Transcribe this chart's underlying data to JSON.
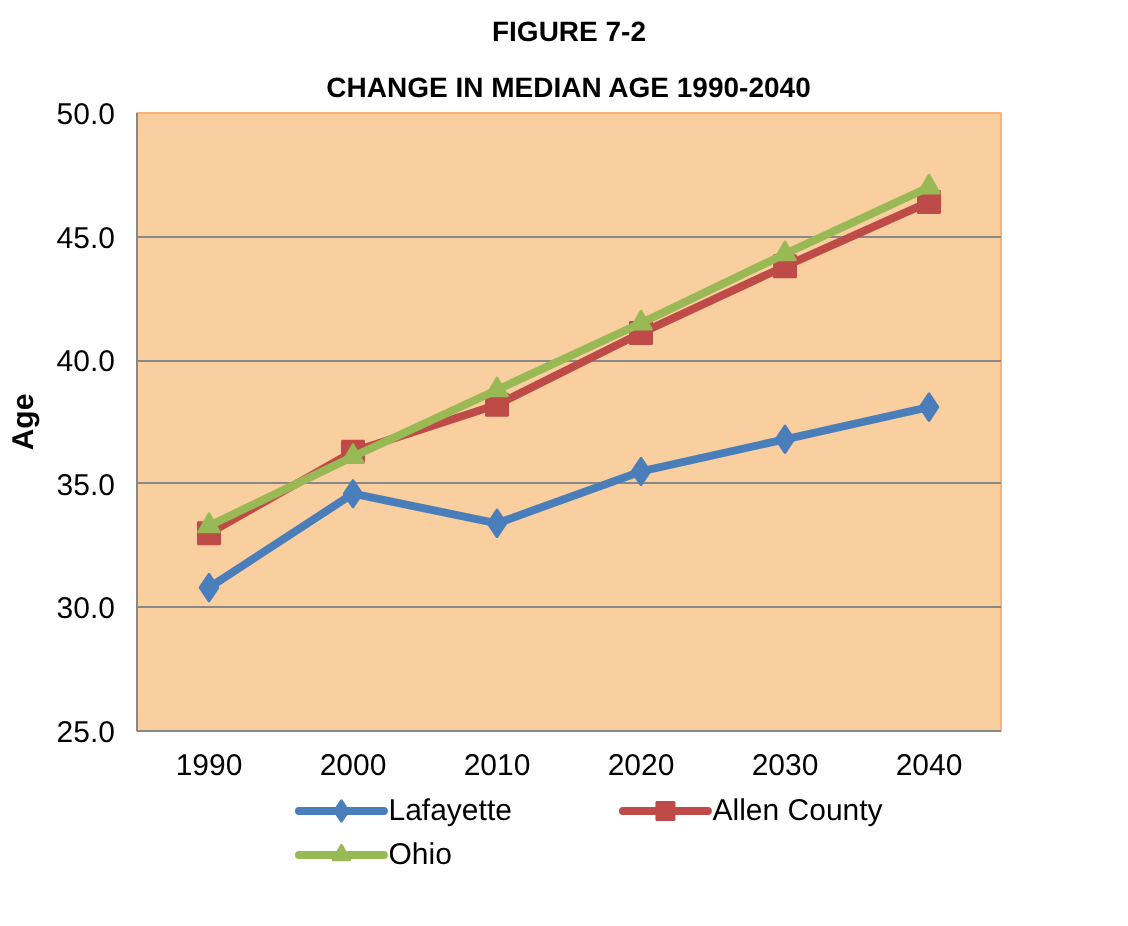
{
  "chart_data": {
    "type": "line",
    "title": "FIGURE 7-2",
    "subtitle": "CHANGE IN MEDIAN AGE 1990-2040",
    "ylabel": "Age",
    "categories": [
      "1990",
      "2000",
      "2010",
      "2020",
      "2030",
      "2040"
    ],
    "ylim": [
      25,
      50
    ],
    "yticks": [
      {
        "value": 25,
        "label": "25.0"
      },
      {
        "value": 30,
        "label": "30.0"
      },
      {
        "value": 35,
        "label": "35.0"
      },
      {
        "value": 40,
        "label": "40.0"
      },
      {
        "value": 45,
        "label": "45.0"
      },
      {
        "value": 50,
        "label": "50.0"
      }
    ],
    "grid": "y",
    "legend": "bottom",
    "series": [
      {
        "name": "Lafayette",
        "color": "#4a7ebb",
        "marker": "diamond",
        "values": [
          30.8,
          34.6,
          33.4,
          35.5,
          36.8,
          38.1
        ]
      },
      {
        "name": "Allen County",
        "color": "#be4b48",
        "marker": "square",
        "values": [
          33.0,
          36.3,
          38.2,
          41.1,
          43.8,
          46.4
        ]
      },
      {
        "name": "Ohio",
        "color": "#98b954",
        "marker": "triangle",
        "values": [
          33.3,
          36.1,
          38.8,
          41.5,
          44.3,
          47.0
        ]
      }
    ]
  }
}
